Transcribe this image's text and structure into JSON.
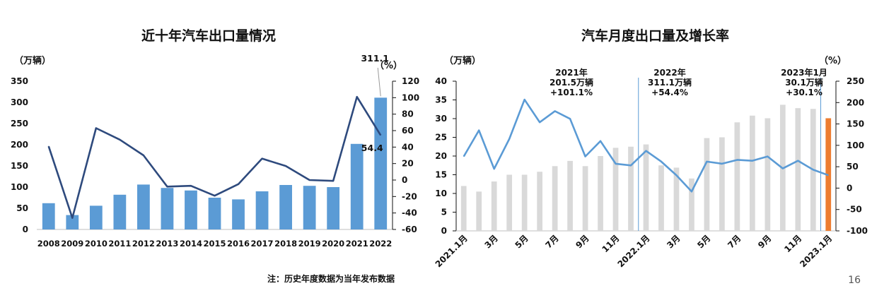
{
  "page_number": "16",
  "footnote": "注：历史年度数据为当年发布数据",
  "colors": {
    "bar_blue": "#5b9bd5",
    "line_dark": "#2e4a7d",
    "bar_gray": "#d9d9d9",
    "line_light": "#5b9bd5",
    "bar_orange": "#ed7d31",
    "divider": "#5b9bd5"
  },
  "chart_data": [
    {
      "type": "bar",
      "title": "近十年汽车出口量情况",
      "ylabel_left": "（万辆）",
      "ylabel_right": "（%）",
      "categories": [
        "2008",
        "2009",
        "2010",
        "2011",
        "2012",
        "2013",
        "2014",
        "2015",
        "2016",
        "2017",
        "2018",
        "2019",
        "2020",
        "2021",
        "2022"
      ],
      "series": [
        {
          "axis": "left",
          "type": "bar",
          "values": [
            62,
            34,
            56,
            82,
            106,
            98,
            92,
            75,
            71,
            90,
            105,
            103,
            100,
            202,
            311.1
          ]
        },
        {
          "axis": "right",
          "type": "line",
          "values": [
            41,
            -46,
            63,
            49,
            30,
            -8,
            -7,
            -19,
            -5,
            26,
            17,
            0,
            -1,
            101,
            54.4
          ]
        }
      ],
      "ylim_left": [
        0,
        350
      ],
      "yticks_left": [
        0,
        50,
        100,
        150,
        200,
        250,
        300,
        350
      ],
      "ylim_right": [
        -60,
        120
      ],
      "yticks_right": [
        -60,
        -40,
        -20,
        0,
        20,
        40,
        60,
        80,
        100,
        120
      ],
      "data_labels": [
        "311.1",
        "54.4"
      ]
    },
    {
      "type": "bar",
      "title": "汽车月度出口量及增长率",
      "ylabel_left": "（万辆）",
      "ylabel_right": "（%）",
      "categories": [
        "2021.1月",
        "2月",
        "3月",
        "4月",
        "5月",
        "6月",
        "7月",
        "8月",
        "9月",
        "10月",
        "11月",
        "12月",
        "2022.1月",
        "2月",
        "3月",
        "4月",
        "5月",
        "6月",
        "7月",
        "8月",
        "9月",
        "10月",
        "11月",
        "12月",
        "2023.1月"
      ],
      "x_tick_labels": [
        "2021.1月",
        "3月",
        "5月",
        "7月",
        "9月",
        "11月",
        "2022.1月",
        "3月",
        "5月",
        "7月",
        "9月",
        "11月",
        "2023.1月"
      ],
      "series": [
        {
          "axis": "left",
          "type": "bar",
          "values": [
            12,
            10.5,
            13.2,
            15,
            15,
            15.8,
            17.3,
            18.7,
            17.3,
            20,
            22.2,
            22.5,
            23.1,
            17.5,
            16.9,
            14,
            24.8,
            25,
            29,
            30.8,
            30.1,
            33.7,
            32.8,
            32.6,
            30.1
          ]
        },
        {
          "axis": "right",
          "type": "line",
          "values": [
            74,
            135,
            45,
            115,
            207,
            154,
            180,
            162,
            74,
            110,
            57,
            53,
            87,
            62,
            30,
            -8,
            62,
            57,
            66,
            64,
            74,
            46,
            64,
            43,
            30.1
          ]
        }
      ],
      "ylim_left": [
        0,
        40
      ],
      "yticks_left": [
        0,
        5,
        10,
        15,
        20,
        25,
        30,
        35,
        40
      ],
      "ylim_right": [
        -100,
        250
      ],
      "yticks_right": [
        -100,
        -50,
        0,
        50,
        100,
        150,
        200,
        250
      ],
      "annotations": [
        {
          "lines": [
            "2021年",
            "201.5万辆",
            "+101.1%"
          ]
        },
        {
          "lines": [
            "2022年",
            "311.1万辆",
            "+54.4%"
          ]
        },
        {
          "lines": [
            "2023年1月",
            "30.1万辆",
            "+30.1%"
          ]
        }
      ]
    }
  ]
}
